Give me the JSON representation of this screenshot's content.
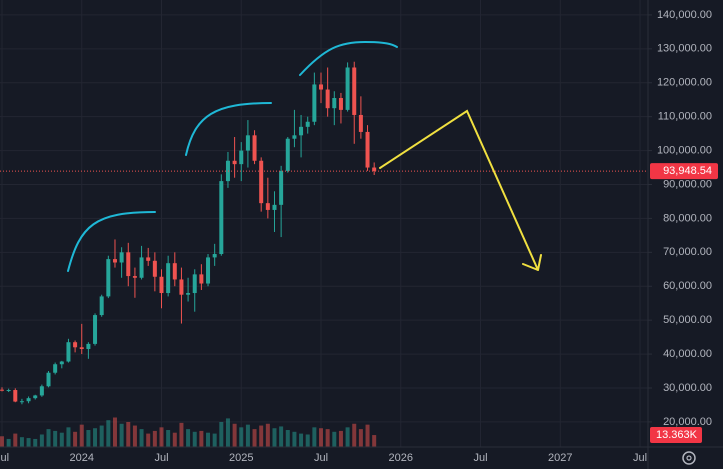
{
  "chart_data": {
    "type": "candlestick",
    "x": [
      0,
      0.5,
      1,
      1.5,
      2,
      2.5,
      3,
      3.5,
      4,
      4.5,
      5,
      5.5,
      6,
      6.5,
      7,
      7.5,
      8,
      8.5,
      9,
      9.5,
      10,
      10.5,
      11,
      11.5,
      12,
      12.5,
      13,
      13.5,
      14,
      14.5,
      15,
      15.5,
      16,
      16.5,
      17,
      17.5,
      18,
      18.5,
      19,
      19.5,
      20,
      20.5,
      21,
      21.5,
      22,
      22.5,
      23,
      23.5,
      24,
      24.5,
      25,
      25.5,
      26,
      26.5,
      27,
      27.5,
      28
    ],
    "open": [
      29500,
      29200,
      29400,
      26000,
      26100,
      27000,
      27800,
      30500,
      34500,
      37000,
      37800,
      43500,
      42000,
      41500,
      43000,
      51500,
      57000,
      68000,
      67000,
      70000,
      63000,
      62500,
      68500,
      67500,
      62800,
      58000,
      66800,
      62000,
      57500,
      58000,
      63500,
      60800,
      68500,
      69500,
      91000,
      97000,
      96000,
      100000,
      104500,
      97000,
      84500,
      82500,
      84000,
      94000,
      103500,
      104500,
      107000,
      108500,
      119500,
      118000,
      112500,
      115500,
      112000,
      124500,
      110500,
      105500,
      95000
    ],
    "high": [
      30200,
      29800,
      29900,
      26800,
      27500,
      28000,
      31000,
      35000,
      37500,
      38000,
      44500,
      44000,
      48900,
      43500,
      52000,
      57500,
      69000,
      73800,
      71500,
      72800,
      65500,
      71900,
      71300,
      70000,
      65000,
      69000,
      70000,
      65500,
      62500,
      65000,
      66500,
      69500,
      72500,
      93000,
      99600,
      104000,
      102500,
      109000,
      106000,
      98000,
      92000,
      88000,
      95500,
      104000,
      112000,
      110500,
      110000,
      123000,
      123000,
      124500,
      117500,
      117000,
      126000,
      126200,
      116000,
      107500,
      96500
    ],
    "low": [
      29000,
      28800,
      25800,
      25200,
      25500,
      26600,
      27400,
      30200,
      34000,
      35800,
      37500,
      40500,
      40000,
      38600,
      42500,
      51000,
      56500,
      65500,
      62500,
      60000,
      56600,
      62000,
      66000,
      58500,
      53500,
      57000,
      60000,
      49000,
      55500,
      52500,
      58900,
      60000,
      66000,
      69000,
      89000,
      92000,
      91000,
      95000,
      96000,
      82000,
      80000,
      76000,
      74500,
      93500,
      101000,
      98000,
      105000,
      107500,
      114000,
      110000,
      107500,
      108000,
      111500,
      102000,
      103500,
      94000,
      92800
    ],
    "close": [
      29200,
      29400,
      26000,
      26100,
      27000,
      27800,
      30500,
      34500,
      37000,
      37800,
      43500,
      42000,
      41500,
      43000,
      51500,
      57000,
      68000,
      67000,
      70000,
      63000,
      62500,
      68500,
      67500,
      62800,
      58000,
      66800,
      62000,
      57500,
      58000,
      63500,
      60800,
      68500,
      69500,
      91000,
      97000,
      96000,
      100000,
      104500,
      97000,
      84500,
      82500,
      84000,
      94000,
      103500,
      104500,
      107000,
      108500,
      119500,
      118000,
      112500,
      115500,
      112000,
      124500,
      110500,
      105500,
      95000,
      93948.54
    ],
    "volume": [
      12000,
      9000,
      15000,
      11000,
      10000,
      9000,
      14000,
      20000,
      18000,
      16000,
      22000,
      17000,
      25000,
      19000,
      21000,
      24000,
      30000,
      33000,
      26000,
      28000,
      24000,
      20000,
      15000,
      18000,
      22000,
      19000,
      16000,
      27000,
      20000,
      17000,
      18000,
      16000,
      15000,
      28000,
      32000,
      26000,
      22000,
      25000,
      20000,
      24000,
      26000,
      21000,
      23000,
      19000,
      17000,
      15000,
      14000,
      22000,
      21000,
      20000,
      17000,
      18000,
      22000,
      26000,
      20000,
      25000,
      13363
    ],
    "up_color": "#26a69a",
    "down_color": "#ef5350",
    "xlim": [
      -0.15,
      48.6
    ],
    "xticks": [
      {
        "value": 0,
        "label": "Jul"
      },
      {
        "value": 6,
        "label": "2024"
      },
      {
        "value": 12,
        "label": "Jul"
      },
      {
        "value": 18,
        "label": "2025"
      },
      {
        "value": 24,
        "label": "Jul"
      },
      {
        "value": 30,
        "label": "2026"
      },
      {
        "value": 36,
        "label": "Jul"
      },
      {
        "value": 42,
        "label": "2027"
      },
      {
        "value": 48,
        "label": "Jul"
      }
    ],
    "ylim": [
      12600,
      144400
    ],
    "yticks": [
      {
        "value": 20000,
        "label": "20,000.00"
      },
      {
        "value": 30000,
        "label": "30,000.00"
      },
      {
        "value": 40000,
        "label": "40,000.00"
      },
      {
        "value": 50000,
        "label": "50,000.00"
      },
      {
        "value": 60000,
        "label": "60,000.00"
      },
      {
        "value": 70000,
        "label": "70,000.00"
      },
      {
        "value": 80000,
        "label": "80,000.00"
      },
      {
        "value": 90000,
        "label": "90,000.00"
      },
      {
        "value": 100000,
        "label": "100,000.00"
      },
      {
        "value": 110000,
        "label": "110,000.00"
      },
      {
        "value": 120000,
        "label": "120,000.00"
      },
      {
        "value": 130000,
        "label": "130,000.00"
      },
      {
        "value": 140000,
        "label": "140,000.00"
      }
    ],
    "y2lim": [
      0,
      500000
    ],
    "grid": true,
    "current_price": {
      "value": 93948.54,
      "label": "93,948.54"
    },
    "current_volume": {
      "value": 13363,
      "label": "13.363K"
    }
  }
}
